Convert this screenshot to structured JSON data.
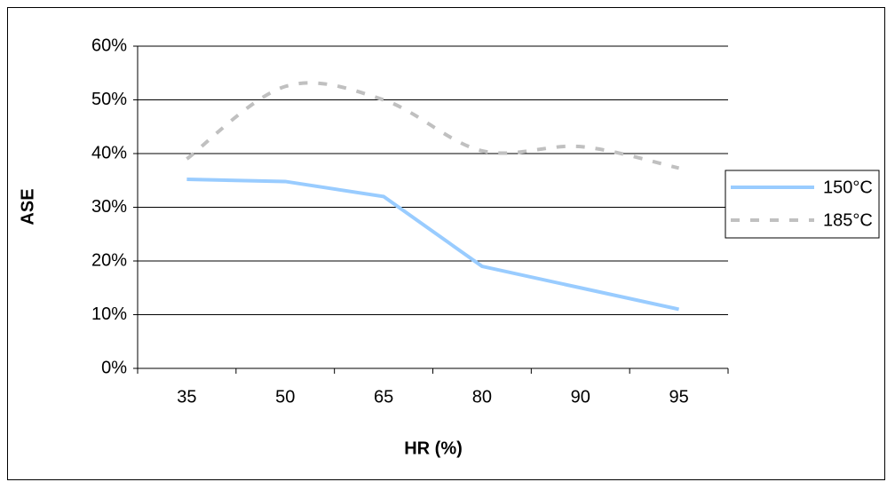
{
  "chart_data": {
    "type": "line",
    "x_label": "HR (%)",
    "y_label": "ASE",
    "categories": [
      "35",
      "50",
      "65",
      "80",
      "90",
      "95"
    ],
    "series": [
      {
        "name": "150°C",
        "color": "#99ccff",
        "dash": false,
        "values": [
          35.2,
          34.8,
          32,
          19,
          15,
          11
        ]
      },
      {
        "name": "185°C",
        "color": "#c0c0c0",
        "dash": true,
        "smooth": true,
        "values": [
          39,
          52.5,
          50,
          40.5,
          41.3,
          37.3
        ]
      }
    ],
    "ylim": [
      0,
      60
    ],
    "yticks": [
      {
        "value": 0,
        "label": "0%"
      },
      {
        "value": 10,
        "label": "10%"
      },
      {
        "value": 20,
        "label": "20%"
      },
      {
        "value": 30,
        "label": "30%"
      },
      {
        "value": 40,
        "label": "40%"
      },
      {
        "value": 50,
        "label": "50%"
      },
      {
        "value": 60,
        "label": "60%"
      }
    ],
    "grid": true,
    "legend": "right"
  }
}
